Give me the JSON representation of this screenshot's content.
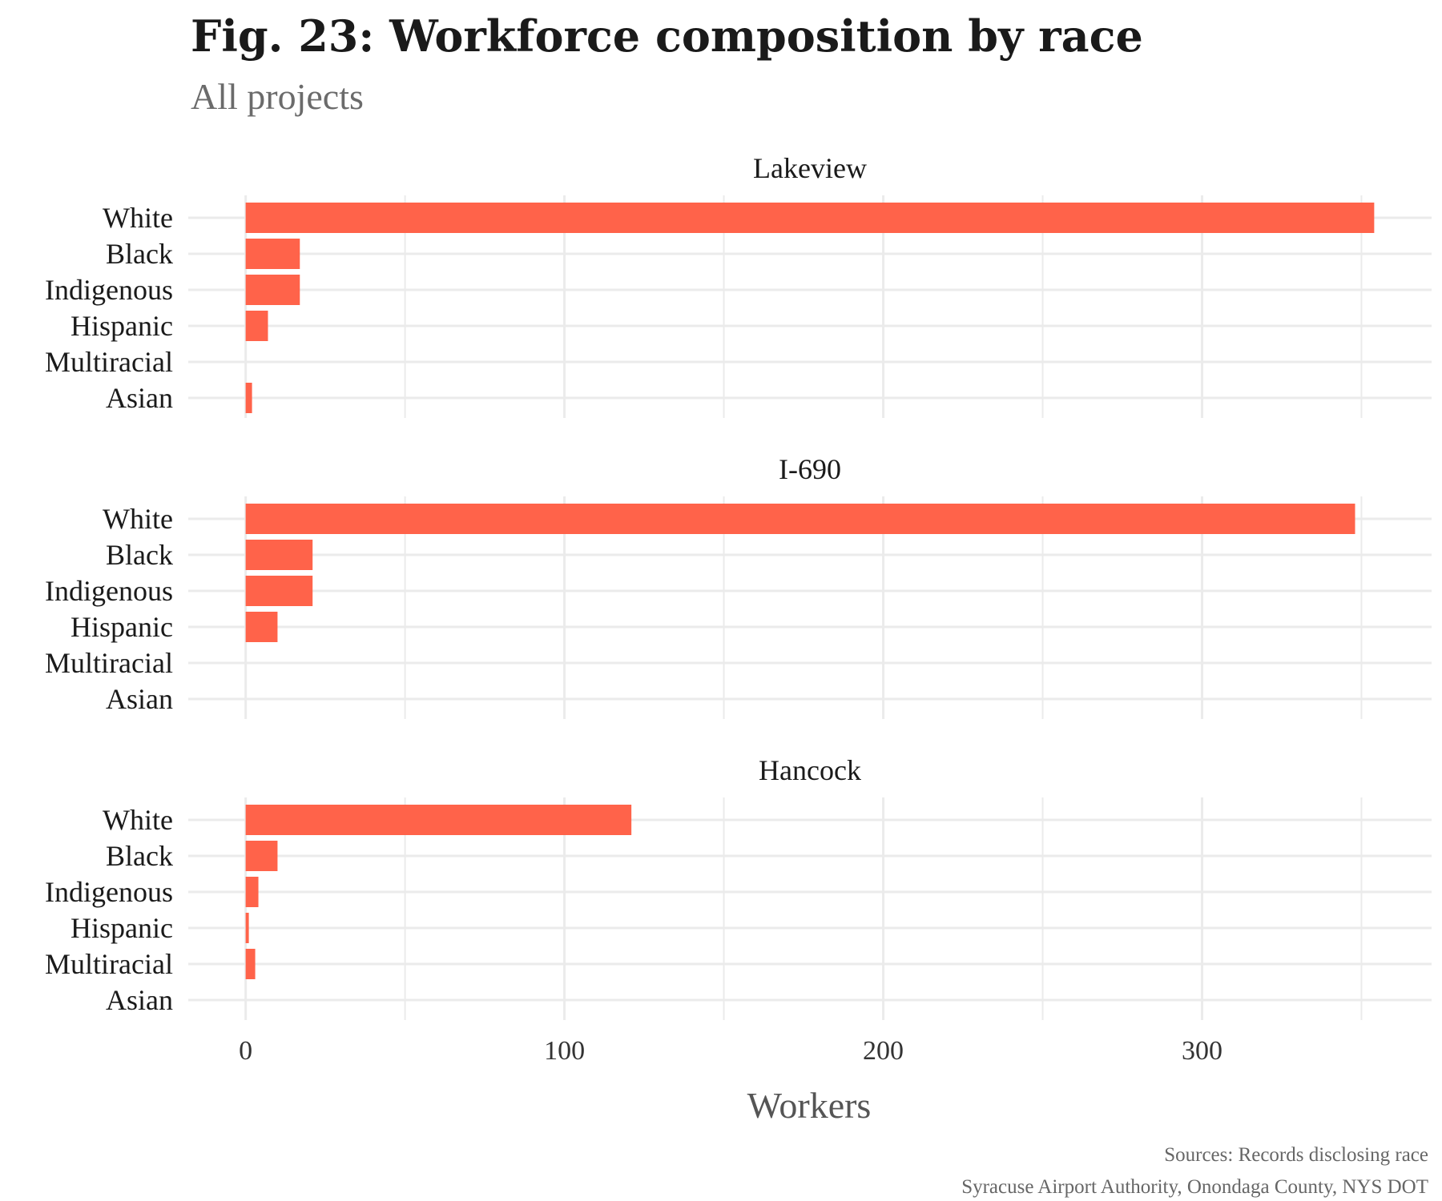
{
  "title": "Fig. 23: Workforce composition by race",
  "subtitle": "All projects",
  "caption_lines": [
    "Sources: Records disclosing race",
    "Syracuse Airport Authority, Onondaga County, NYS DOT"
  ],
  "colors": {
    "bar": "#FF634A",
    "grid": "#EBEBEB",
    "background": "#FFFFFF"
  },
  "chart_data": {
    "type": "bar",
    "orientation": "horizontal",
    "categories": [
      "White",
      "Black",
      "Indigenous",
      "Hispanic",
      "Multiracial",
      "Asian"
    ],
    "facets": [
      {
        "name": "Lakeview",
        "values": [
          354,
          17,
          17,
          7,
          0,
          2
        ]
      },
      {
        "name": "I-690",
        "values": [
          348,
          21,
          21,
          10,
          0,
          0
        ]
      },
      {
        "name": "Hancock",
        "values": [
          121,
          10,
          4,
          1,
          3,
          0
        ]
      }
    ],
    "xlabel": "Workers",
    "ylabel": "",
    "xlim": [
      -18,
      372
    ],
    "xticks": [
      0,
      100,
      200,
      300
    ],
    "grid": true,
    "legend": "none"
  }
}
